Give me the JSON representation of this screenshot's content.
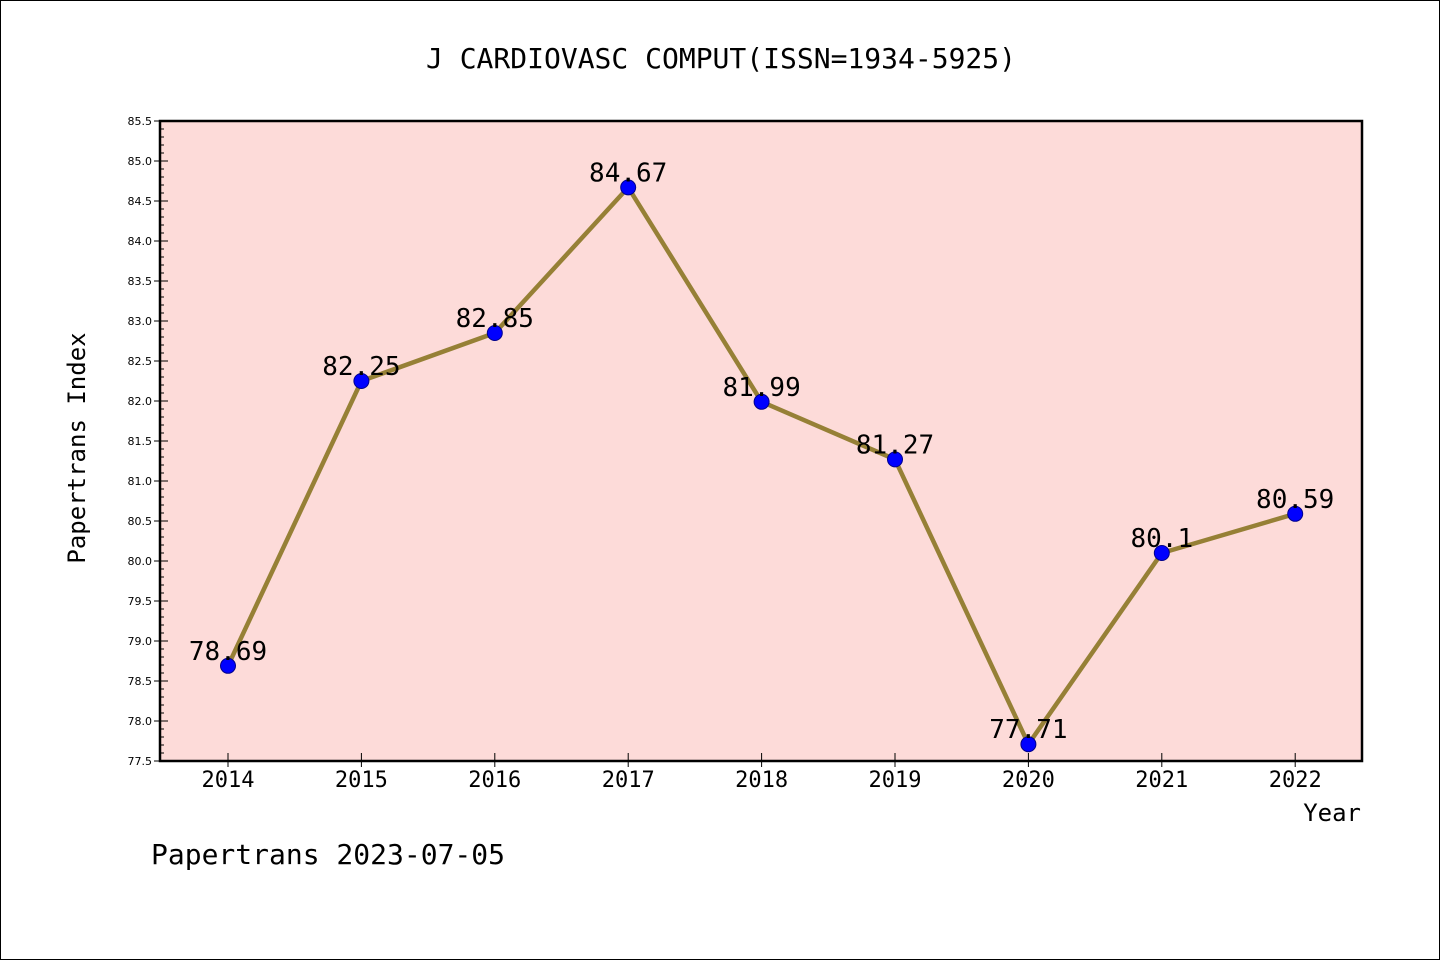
{
  "chart_data": {
    "type": "line",
    "title": "J CARDIOVASC COMPUT(ISSN=1934-5925)",
    "xlabel": "Year",
    "ylabel": "Papertrans Index",
    "footer": "Papertrans 2023-07-05",
    "categories": [
      "2014",
      "2015",
      "2016",
      "2017",
      "2018",
      "2019",
      "2020",
      "2021",
      "2022"
    ],
    "series": [
      {
        "values": [
          78.69,
          82.25,
          82.85,
          84.67,
          81.99,
          81.27,
          77.71,
          80.1,
          80.59
        ],
        "data_labels": [
          "78.69",
          "82.25",
          "82.85",
          "84.67",
          "81.99",
          "81.27",
          "77.71",
          "80.1",
          "80.59"
        ]
      }
    ],
    "ylim": [
      77.5,
      85.5
    ],
    "yticks": [
      "77.5",
      "78.0",
      "78.5",
      "79.0",
      "79.5",
      "80.0",
      "80.5",
      "81.0",
      "81.5",
      "82.0",
      "82.5",
      "83.0",
      "83.5",
      "84.0",
      "84.5",
      "85.0",
      "85.5"
    ],
    "grid": false,
    "colors": {
      "plot_background": "#fddbd9",
      "line": "#968036",
      "marker": "#0000ff",
      "marker_edge": "#00008b",
      "axes": "#000000"
    }
  }
}
